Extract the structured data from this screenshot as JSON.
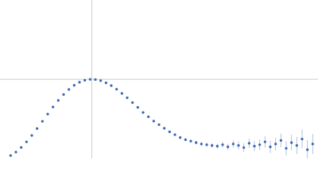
{
  "chart_data": {
    "type": "scatter",
    "x": [
      0.2,
      0.3,
      0.4,
      0.5,
      0.6,
      0.7,
      0.8,
      0.9,
      1.0,
      1.1,
      1.2,
      1.3,
      1.4,
      1.5,
      1.6,
      1.7,
      1.8,
      1.9,
      2.0,
      2.1,
      2.2,
      2.3,
      2.4,
      2.5,
      2.6,
      2.7,
      2.8,
      2.9,
      3.0,
      3.1,
      3.2,
      3.3,
      3.4,
      3.5,
      3.6,
      3.7,
      3.8,
      3.9,
      4.0,
      4.1,
      4.2,
      4.3,
      4.4,
      4.5,
      4.6,
      4.7,
      4.8,
      4.9,
      5.0,
      5.1,
      5.2,
      5.3,
      5.4,
      5.5,
      5.6,
      5.7,
      5.8,
      5.9
    ],
    "values": [
      0.039,
      0.087,
      0.152,
      0.23,
      0.319,
      0.416,
      0.517,
      0.618,
      0.717,
      0.808,
      0.891,
      0.962,
      1.019,
      1.062,
      1.09,
      1.102,
      1.1,
      1.084,
      1.054,
      1.015,
      0.965,
      0.906,
      0.845,
      0.778,
      0.711,
      0.64,
      0.58,
      0.52,
      0.47,
      0.42,
      0.37,
      0.33,
      0.29,
      0.26,
      0.24,
      0.22,
      0.2,
      0.19,
      0.18,
      0.17,
      0.19,
      0.16,
      0.2,
      0.18,
      0.15,
      0.21,
      0.17,
      0.19,
      0.23,
      0.16,
      0.2,
      0.25,
      0.14,
      0.22,
      0.18,
      0.27,
      0.12,
      0.2
    ],
    "errors": [
      0.003,
      0.003,
      0.003,
      0.003,
      0.003,
      0.003,
      0.003,
      0.003,
      0.003,
      0.003,
      0.003,
      0.003,
      0.003,
      0.003,
      0.004,
      0.004,
      0.004,
      0.004,
      0.004,
      0.005,
      0.005,
      0.005,
      0.006,
      0.006,
      0.007,
      0.007,
      0.008,
      0.009,
      0.01,
      0.012,
      0.014,
      0.016,
      0.018,
      0.02,
      0.022,
      0.025,
      0.027,
      0.03,
      0.032,
      0.035,
      0.04,
      0.045,
      0.05,
      0.055,
      0.06,
      0.065,
      0.07,
      0.075,
      0.08,
      0.085,
      0.09,
      0.095,
      0.1,
      0.11,
      0.12,
      0.13,
      0.135,
      0.14
    ],
    "color": "#3a66b0",
    "error_color": "#9db6de",
    "xlim": [
      0,
      6
    ],
    "ylim": [
      0,
      2.21
    ],
    "xlines": [
      1.732
    ],
    "ylines": [
      1.104
    ],
    "line_color": "#cccccc"
  }
}
